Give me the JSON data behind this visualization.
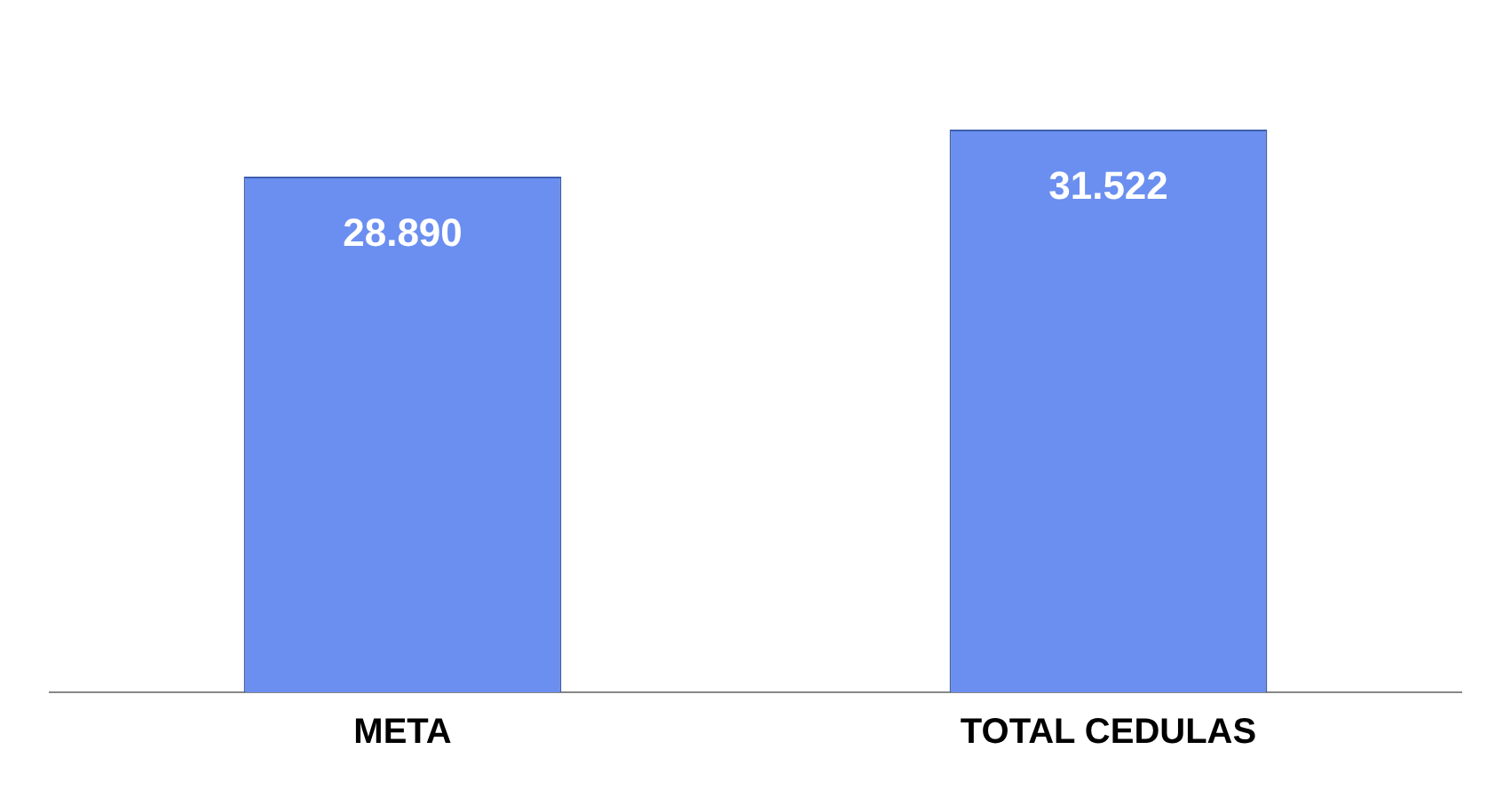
{
  "chart_data": {
    "type": "bar",
    "categories": [
      "META",
      "TOTAL CEDULAS"
    ],
    "values": [
      28890,
      31522
    ],
    "color": "#6b8ff0",
    "value_labels": [
      "28.890",
      "31.522"
    ],
    "grid": false,
    "legend": false
  }
}
